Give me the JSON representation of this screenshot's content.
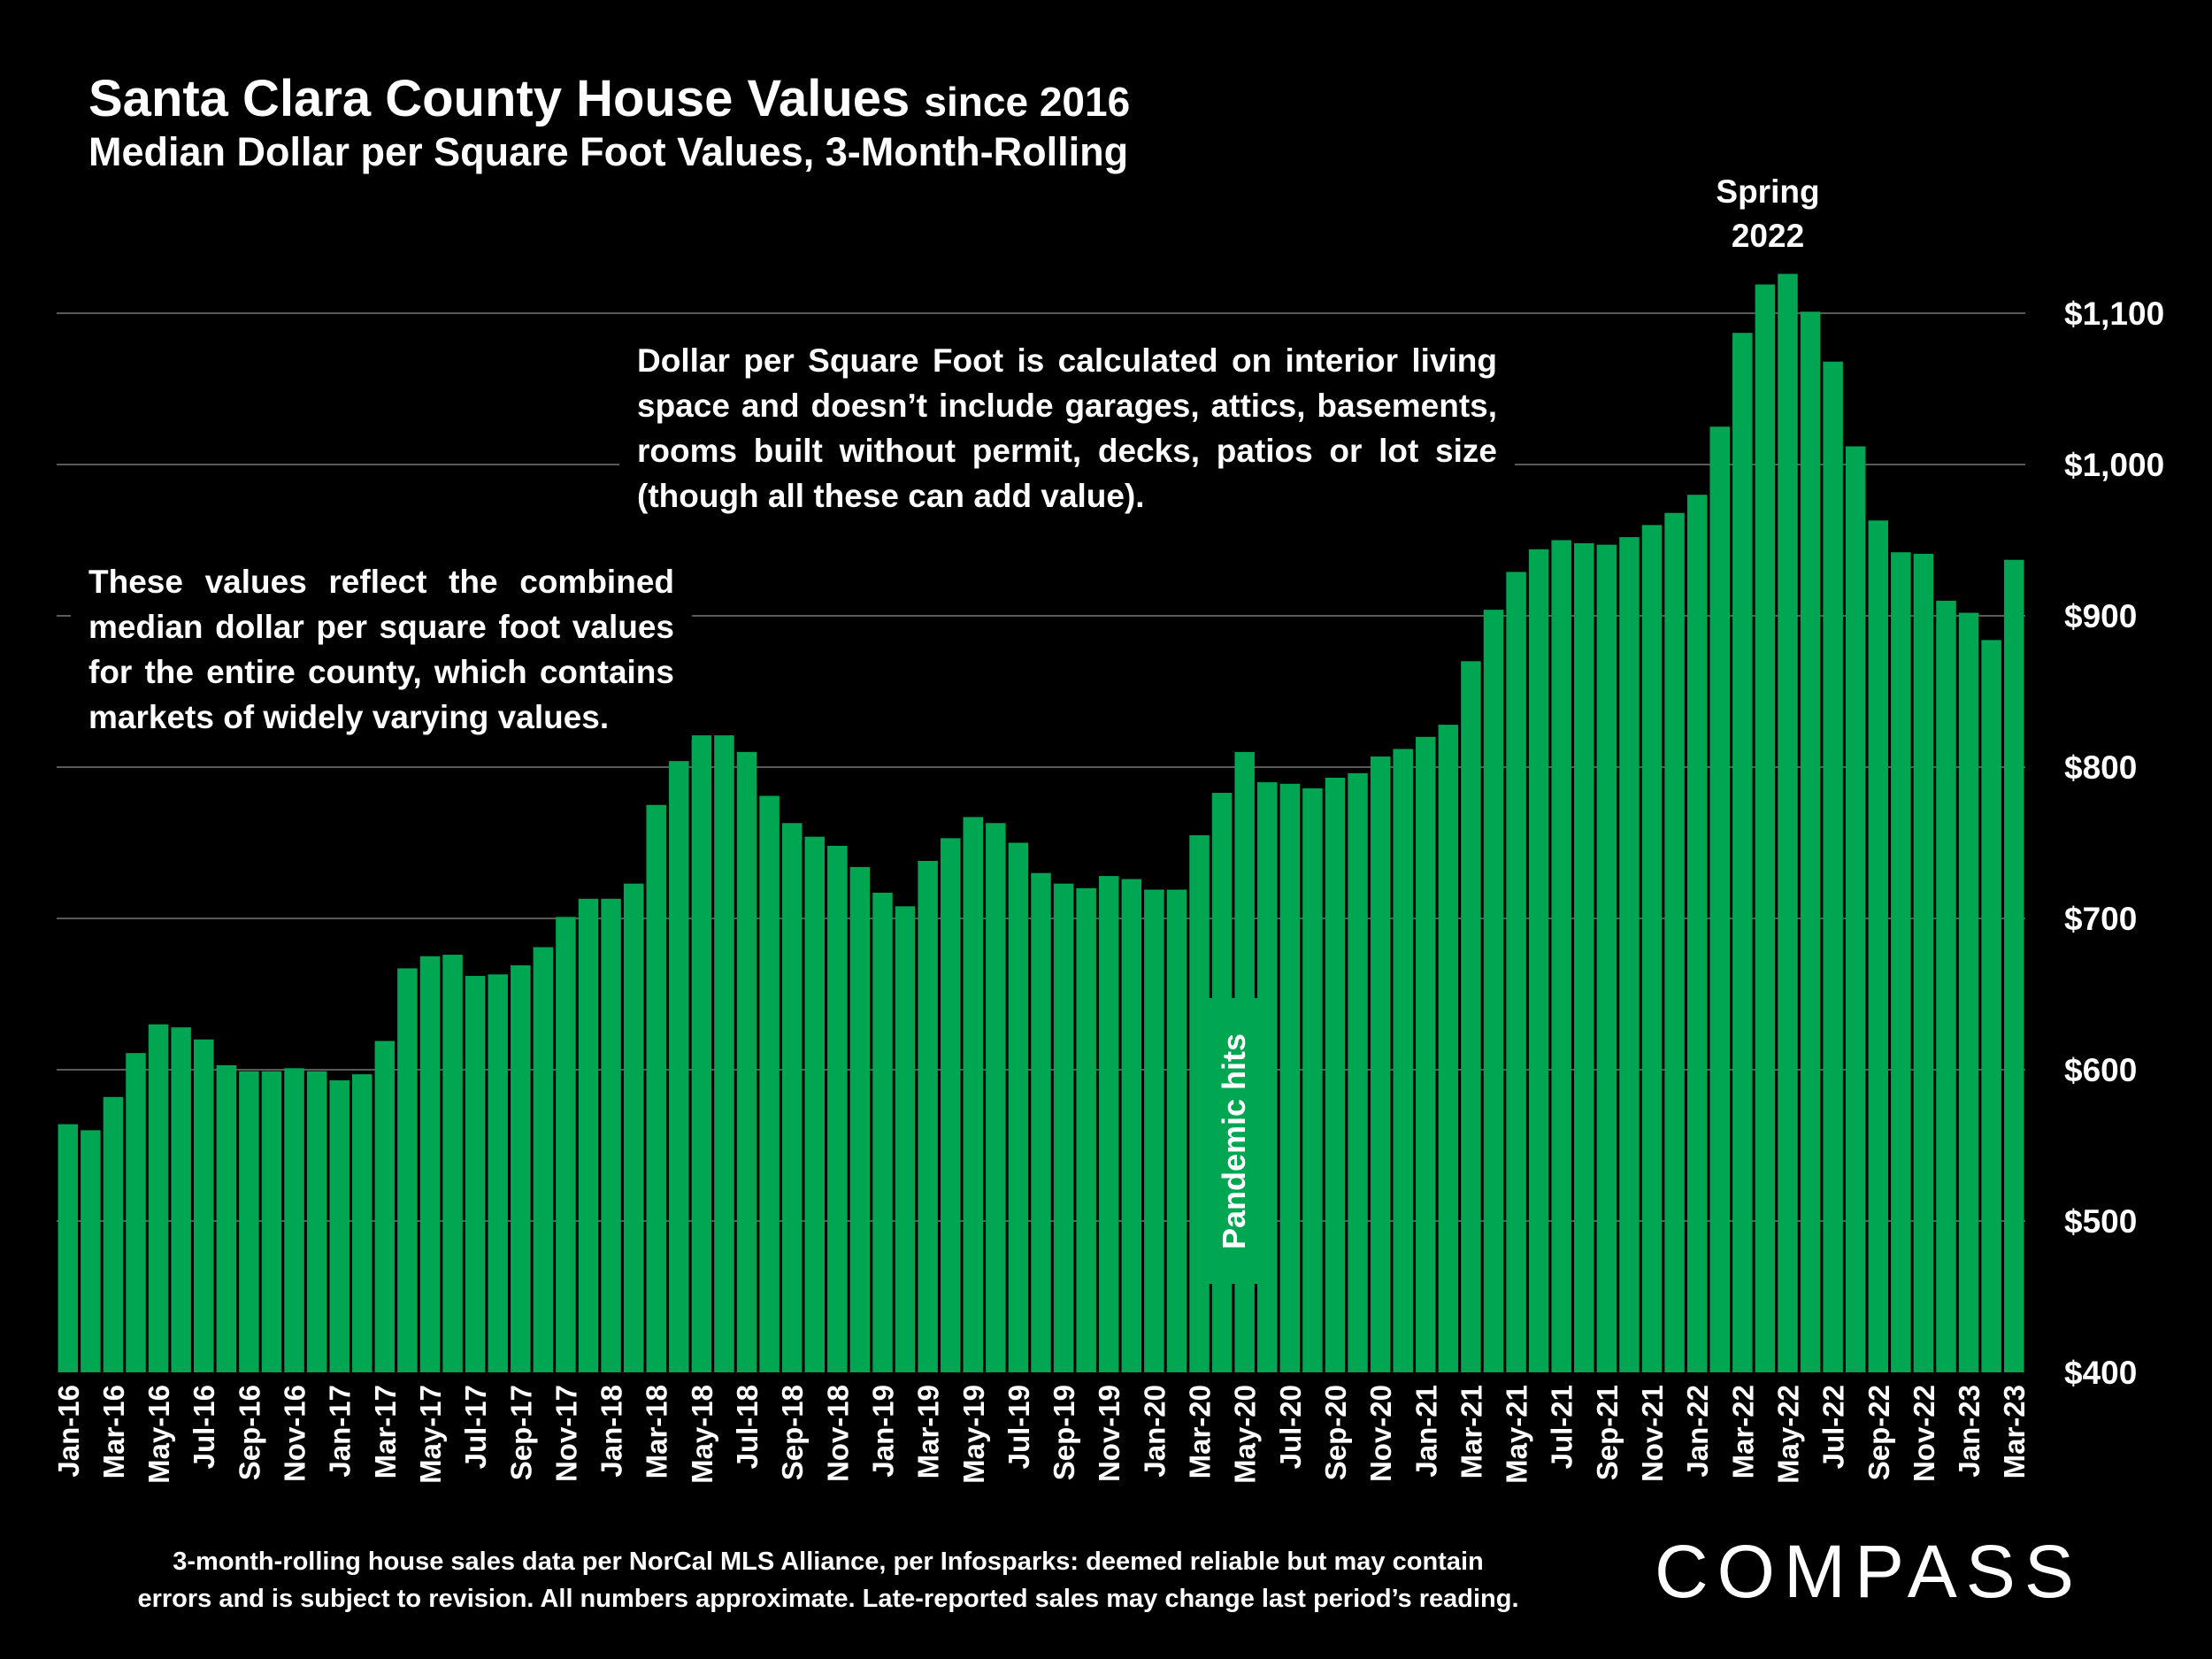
{
  "header": {
    "title": "Santa Clara County House Values",
    "title_suffix": "since 2016",
    "subtitle": "Median Dollar per Square Foot Values, 3-Month-Rolling"
  },
  "annotations": {
    "note_sqft": "Dollar per Square Foot is calculated on interior living space and doesn’t include garages, attics, basements, rooms built without permit, decks, patios or lot size (though all these can add value).",
    "note_county": "These values reflect the combined median dollar per square foot values for the entire county, which contains markets of widely varying values.",
    "spring_line1": "Spring",
    "spring_line2": "2022",
    "pandemic": "Pandemic hits"
  },
  "footer": {
    "line1": "3-month-rolling house sales data per NorCal MLS Alliance, per Infosparks:  deemed reliable but may contain",
    "line2": "errors and is subject to revision. All numbers approximate. Late-reported sales may change last period’s reading."
  },
  "logo": "COMPASS",
  "colors": {
    "bar": "#00a651",
    "grid": "#595959",
    "background": "#000000"
  },
  "chart_data": {
    "type": "bar",
    "title": "Santa Clara County House Values since 2016",
    "ylabel": "Median $/sq ft",
    "xlabel": "",
    "ylim": [
      400,
      1100
    ],
    "yticks": [
      400,
      500,
      600,
      700,
      800,
      900,
      1000,
      1100
    ],
    "ytick_labels": [
      "$400",
      "$500",
      "$600",
      "$700",
      "$800",
      "$900",
      "$1,000",
      "$1,100"
    ],
    "grid": true,
    "categories": [
      "Jan-16",
      "Feb-16",
      "Mar-16",
      "Apr-16",
      "May-16",
      "Jun-16",
      "Jul-16",
      "Aug-16",
      "Sep-16",
      "Oct-16",
      "Nov-16",
      "Dec-16",
      "Jan-17",
      "Feb-17",
      "Mar-17",
      "Apr-17",
      "May-17",
      "Jun-17",
      "Jul-17",
      "Aug-17",
      "Sep-17",
      "Oct-17",
      "Nov-17",
      "Dec-17",
      "Jan-18",
      "Feb-18",
      "Mar-18",
      "Apr-18",
      "May-18",
      "Jun-18",
      "Jul-18",
      "Aug-18",
      "Sep-18",
      "Oct-18",
      "Nov-18",
      "Dec-18",
      "Jan-19",
      "Feb-19",
      "Mar-19",
      "Apr-19",
      "May-19",
      "Jun-19",
      "Jul-19",
      "Aug-19",
      "Sep-19",
      "Oct-19",
      "Nov-19",
      "Dec-19",
      "Jan-20",
      "Feb-20",
      "Mar-20",
      "Apr-20",
      "May-20",
      "Jun-20",
      "Jul-20",
      "Aug-20",
      "Sep-20",
      "Oct-20",
      "Nov-20",
      "Dec-20",
      "Jan-21",
      "Feb-21",
      "Mar-21",
      "Apr-21",
      "May-21",
      "Jun-21",
      "Jul-21",
      "Aug-21",
      "Sep-21",
      "Oct-21",
      "Nov-21",
      "Dec-21",
      "Jan-22",
      "Feb-22",
      "Mar-22",
      "Apr-22",
      "May-22",
      "Jun-22",
      "Jul-22",
      "Aug-22",
      "Sep-22",
      "Oct-22",
      "Nov-22",
      "Dec-22",
      "Jan-23",
      "Feb-23",
      "Mar-23"
    ],
    "values": [
      564,
      560,
      582,
      611,
      630,
      628,
      620,
      603,
      599,
      599,
      601,
      599,
      593,
      597,
      619,
      667,
      675,
      676,
      662,
      663,
      669,
      681,
      701,
      713,
      713,
      723,
      775,
      804,
      821,
      821,
      810,
      781,
      763,
      754,
      748,
      734,
      717,
      708,
      738,
      753,
      767,
      763,
      750,
      730,
      723,
      720,
      728,
      726,
      719,
      719,
      755,
      783,
      810,
      790,
      789,
      786,
      793,
      796,
      807,
      812,
      820,
      828,
      870,
      904,
      929,
      944,
      950,
      948,
      947,
      952,
      960,
      968,
      980,
      1025,
      1087,
      1119,
      1126,
      1101,
      1068,
      1012,
      963,
      942,
      941,
      910,
      902,
      884,
      937
    ]
  }
}
